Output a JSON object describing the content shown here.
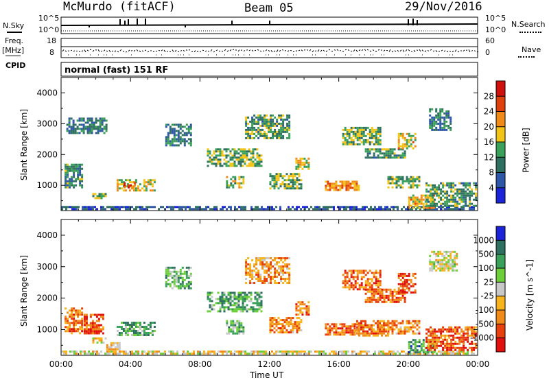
{
  "header": {
    "station": "McMurdo (fitACF)",
    "beam": "Beam 05",
    "date": "29/Nov/2016"
  },
  "strip_labels": {
    "nsky": "N.Sky",
    "nsky_hi": "10^5",
    "nsky_lo": "10^0",
    "nsearch": "N.Search",
    "nsearch_hi": "10^5",
    "nsearch_lo": "10^0",
    "freq_label_1": "Freq.",
    "freq_label_2": "[MHz]",
    "freq_hi": "18",
    "freq_lo": "8",
    "nave": "Nave",
    "nave_hi": "60",
    "nave_lo": "0",
    "cpid": "CPID",
    "cpid_value": "normal (fast) 151 RF"
  },
  "chart_data": [
    {
      "type": "heatmap",
      "title": "",
      "ylabel": "Slant Range [km]",
      "xlabel": "",
      "yticks": [
        "1000",
        "2000",
        "3000",
        "4000"
      ],
      "ylim": [
        180,
        4500
      ],
      "xlim": [
        0,
        24
      ],
      "colorbar": {
        "label": "Power [dB]",
        "ticks": [
          "4",
          "8",
          "12",
          "16",
          "20",
          "24",
          "28"
        ],
        "colors": [
          "#1c24d9",
          "#2f57a8",
          "#2f6f5f",
          "#3aa05a",
          "#f2c418",
          "#f08a18",
          "#e0400c",
          "#d0100c"
        ]
      },
      "patches": [
        {
          "t0": 0.0,
          "t1": 23.9,
          "r0": 200,
          "r1": 330,
          "level": 0.2
        },
        {
          "t0": 3.2,
          "t1": 5.4,
          "r0": 850,
          "r1": 1200,
          "level": 0.55
        },
        {
          "t0": 3.6,
          "t1": 4.2,
          "r0": 950,
          "r1": 1100,
          "level": 0.85
        },
        {
          "t0": 0.2,
          "t1": 1.2,
          "r0": 900,
          "r1": 1700,
          "level": 0.35
        },
        {
          "t0": 1.8,
          "t1": 2.6,
          "r0": 600,
          "r1": 750,
          "level": 0.45
        },
        {
          "t0": 8.4,
          "t1": 11.5,
          "r0": 1600,
          "r1": 2200,
          "level": 0.45
        },
        {
          "t0": 9.5,
          "t1": 10.5,
          "r0": 900,
          "r1": 1300,
          "level": 0.5
        },
        {
          "t0": 10.6,
          "t1": 13.2,
          "r0": 2500,
          "r1": 3300,
          "level": 0.4
        },
        {
          "t0": 12.0,
          "t1": 13.8,
          "r0": 900,
          "r1": 1400,
          "level": 0.45
        },
        {
          "t0": 13.5,
          "t1": 14.3,
          "r0": 1500,
          "r1": 1900,
          "level": 0.55
        },
        {
          "t0": 15.2,
          "t1": 17.2,
          "r0": 850,
          "r1": 1150,
          "level": 0.7
        },
        {
          "t0": 16.2,
          "t1": 18.4,
          "r0": 2300,
          "r1": 2900,
          "level": 0.45
        },
        {
          "t0": 17.5,
          "t1": 19.8,
          "r0": 1900,
          "r1": 2200,
          "level": 0.4
        },
        {
          "t0": 19.4,
          "t1": 20.4,
          "r0": 2200,
          "r1": 2700,
          "level": 0.6
        },
        {
          "t0": 18.8,
          "t1": 20.6,
          "r0": 900,
          "r1": 1300,
          "level": 0.45
        },
        {
          "t0": 20.0,
          "t1": 21.5,
          "r0": 250,
          "r1": 700,
          "level": 0.6
        },
        {
          "t0": 21.0,
          "t1": 23.9,
          "r0": 350,
          "r1": 1100,
          "level": 0.4
        },
        {
          "t0": 21.2,
          "t1": 22.5,
          "r0": 2800,
          "r1": 3500,
          "level": 0.3
        },
        {
          "t0": 6.0,
          "t1": 7.5,
          "r0": 2300,
          "r1": 3000,
          "level": 0.3
        },
        {
          "t0": 0.3,
          "t1": 2.6,
          "r0": 2700,
          "r1": 3200,
          "level": 0.3
        }
      ]
    },
    {
      "type": "heatmap",
      "title": "",
      "ylabel": "Slant Range [km]",
      "xlabel": "Time UT",
      "xticks": [
        "00:00",
        "04:00",
        "08:00",
        "12:00",
        "16:00",
        "20:00",
        "00:00"
      ],
      "yticks": [
        "1000",
        "2000",
        "3000",
        "4000"
      ],
      "ylim": [
        180,
        4500
      ],
      "xlim": [
        0,
        24
      ],
      "colorbar": {
        "label": "Velocity [m s^-1]",
        "ticks": [
          "1000",
          "500",
          "100",
          "25",
          "-25",
          "-100",
          "-500",
          "-1000"
        ],
        "colors": [
          "#1c24d9",
          "#2f6f5f",
          "#3aa05a",
          "#6ccf3a",
          "#c8c8c8",
          "#f7b41c",
          "#f08a18",
          "#e8400c",
          "#e0100c"
        ]
      },
      "patches": [
        {
          "t0": 0.0,
          "t1": 23.9,
          "r0": 200,
          "r1": 330,
          "level": 0.55
        },
        {
          "t0": 3.2,
          "t1": 5.4,
          "r0": 850,
          "r1": 1250,
          "level": 0.3
        },
        {
          "t0": 0.2,
          "t1": 1.2,
          "r0": 900,
          "r1": 1700,
          "level": 0.75
        },
        {
          "t0": 1.3,
          "t1": 2.4,
          "r0": 900,
          "r1": 1500,
          "level": 0.8
        },
        {
          "t0": 1.8,
          "t1": 2.6,
          "r0": 600,
          "r1": 750,
          "level": 0.55
        },
        {
          "t0": 8.4,
          "t1": 11.5,
          "r0": 1600,
          "r1": 2200,
          "level": 0.3
        },
        {
          "t0": 9.5,
          "t1": 10.5,
          "r0": 900,
          "r1": 1300,
          "level": 0.35
        },
        {
          "t0": 10.6,
          "t1": 13.2,
          "r0": 2500,
          "r1": 3300,
          "level": 0.7
        },
        {
          "t0": 12.0,
          "t1": 13.8,
          "r0": 900,
          "r1": 1400,
          "level": 0.72
        },
        {
          "t0": 13.5,
          "t1": 14.3,
          "r0": 1500,
          "r1": 1900,
          "level": 0.75
        },
        {
          "t0": 15.2,
          "t1": 17.2,
          "r0": 850,
          "r1": 1200,
          "level": 0.78
        },
        {
          "t0": 17.0,
          "t1": 18.8,
          "r0": 800,
          "r1": 1300,
          "level": 0.75
        },
        {
          "t0": 16.2,
          "t1": 18.4,
          "r0": 2300,
          "r1": 2900,
          "level": 0.75
        },
        {
          "t0": 17.5,
          "t1": 19.8,
          "r0": 1900,
          "r1": 2300,
          "level": 0.78
        },
        {
          "t0": 19.4,
          "t1": 20.4,
          "r0": 2200,
          "r1": 2800,
          "level": 0.85
        },
        {
          "t0": 18.8,
          "t1": 20.6,
          "r0": 900,
          "r1": 1300,
          "level": 0.72
        },
        {
          "t0": 20.0,
          "t1": 21.5,
          "r0": 250,
          "r1": 700,
          "level": 0.25
        },
        {
          "t0": 21.0,
          "t1": 23.9,
          "r0": 350,
          "r1": 1100,
          "level": 0.8
        },
        {
          "t0": 21.2,
          "t1": 22.8,
          "r0": 2900,
          "r1": 3500,
          "level": 0.5
        },
        {
          "t0": 6.0,
          "t1": 7.5,
          "r0": 2300,
          "r1": 3000,
          "level": 0.35
        },
        {
          "t0": 2.6,
          "t1": 3.4,
          "r0": 400,
          "r1": 600,
          "level": 0.62
        }
      ]
    }
  ]
}
